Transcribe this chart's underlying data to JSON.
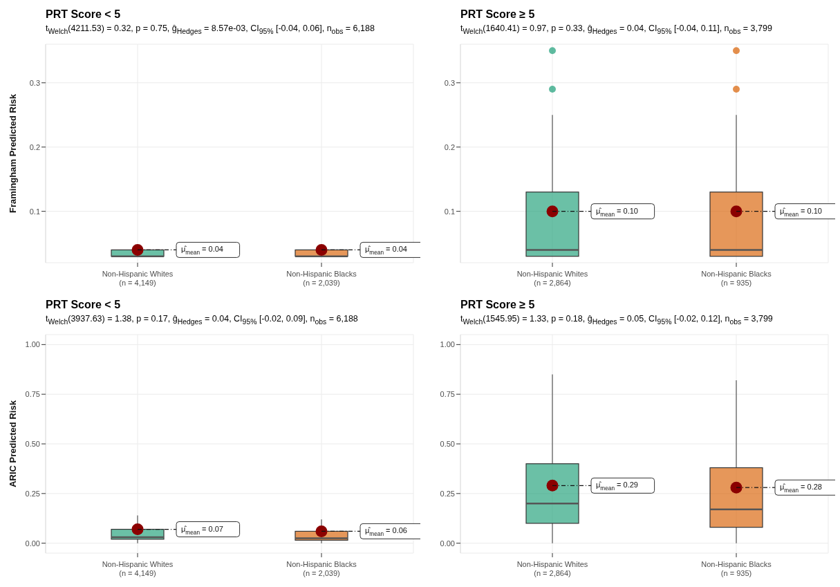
{
  "chart_data": [
    {
      "type": "box",
      "title": "PRT Score < 5",
      "subtitle": "t$_{Welch}$(4211.53) = 0.32, p = 0.75, ĝ$_{Hedges}$ = 8.57e-03, CI$_{95%}$ [-0.04, 0.06], n$_{obs}$ = 6,188",
      "ylabel": "Framingham Predicted Risk",
      "categories": [
        "Non-Hispanic Whites\n(n = 4,149)",
        "Non-Hispanic Blacks\n(n = 2,039)"
      ],
      "colors": [
        "#1b9e77",
        "#d95f02"
      ],
      "boxes": [
        {
          "low": 0.03,
          "q1": 0.03,
          "median": 0.03,
          "q3": 0.04,
          "high": 0.04,
          "mean": 0.04
        },
        {
          "low": 0.03,
          "q1": 0.03,
          "median": 0.03,
          "q3": 0.04,
          "high": 0.04,
          "mean": 0.04
        }
      ],
      "annotations": [
        {
          "text": "μ̂$_{mean}$ = 0.04",
          "x": "Non-Hispanic Whites\n(n = 4,149)",
          "y": 0.04
        },
        {
          "text": "μ̂$_{mean}$ = 0.04",
          "x": "Non-Hispanic Blacks\n(n = 2,039)",
          "y": 0.04
        }
      ],
      "ylim": [
        0.02,
        0.36
      ],
      "yticks": [
        0.1,
        0.2,
        0.3
      ],
      "grid": true
    },
    {
      "type": "box",
      "title": "PRT Score ≥  5",
      "subtitle": "t$_{Welch}$(1640.41) = 0.97, p = 0.33, ĝ$_{Hedges}$ = 0.04, CI$_{95%}$ [-0.04, 0.11], n$_{obs}$ = 3,799",
      "categories": [
        "Non-Hispanic Whites\n(n = 2,864)",
        "Non-Hispanic Blacks\n(n = 935)"
      ],
      "colors": [
        "#1b9e77",
        "#d95f02"
      ],
      "boxes": [
        {
          "low": 0.03,
          "q1": 0.03,
          "median": 0.04,
          "q3": 0.13,
          "high": 0.25,
          "mean": 0.1,
          "outliers": [
            0.29,
            0.35
          ]
        },
        {
          "low": 0.03,
          "q1": 0.03,
          "median": 0.04,
          "q3": 0.13,
          "high": 0.25,
          "mean": 0.1,
          "outliers": [
            0.29,
            0.35
          ]
        }
      ],
      "annotations": [
        "μ̂$_{mean}$ = 0.10",
        "μ̂$_{mean}$ = 0.10"
      ],
      "ylim": [
        0.02,
        0.36
      ],
      "yticks": [
        0.1,
        0.2,
        0.3
      ],
      "grid": true
    },
    {
      "type": "box",
      "title": "PRT Score < 5",
      "subtitle": "t$_{Welch}$(3937.63) = 1.38, p = 0.17, ĝ$_{Hedges}$ = 0.04, CI$_{95%}$ [-0.02, 0.09], n$_{obs}$ = 6,188",
      "ylabel": "ARIC Predicted Risk",
      "categories": [
        "Non-Hispanic Whites\n(n = 4,149)",
        "Non-Hispanic Blacks\n(n = 2,039)"
      ],
      "colors": [
        "#1b9e77",
        "#d95f02"
      ],
      "boxes": [
        {
          "low": 0.0,
          "q1": 0.02,
          "median": 0.03,
          "q3": 0.07,
          "high": 0.14,
          "mean": 0.07
        },
        {
          "low": 0.0,
          "q1": 0.015,
          "median": 0.025,
          "q3": 0.06,
          "high": 0.12,
          "mean": 0.06
        }
      ],
      "annotations": [
        {
          "text": "μ̂$_{mean}$ = 0.07",
          "x": "Non-Hispanic Whites\n(n = 4,149)",
          "y": 0.07
        },
        {
          "text": "μ̂$_{mean}$ = 0.06",
          "x": "Non-Hispanic Blacks\n(n = 2,039)",
          "y": 0.06
        }
      ],
      "ylim": [
        -0.05,
        1.05
      ],
      "yticks": [
        {
          "value": 0,
          "label": "0.00"
        },
        {
          "value": 0.25,
          "label": "0.25"
        },
        {
          "value": 0.5,
          "label": "0.50"
        },
        {
          "value": 0.75,
          "label": "0.75"
        },
        {
          "value": 1,
          "label": "1.00"
        }
      ],
      "grid": true
    },
    {
      "type": "box",
      "title": "PRT Score ≥  5",
      "subtitle": "t$_{Welch}$(1545.95) = 1.33, p = 0.18, ĝ$_{Hedges}$ = 0.05, CI$_{95%}$ [-0.02, 0.12], n$_{obs}$ = 3,799",
      "categories": [
        "Non-Hispanic Whites\n(n = 2,864)",
        "Non-Hispanic Blacks\n(n = 935)"
      ],
      "colors": [
        "#1b9e77",
        "#d95f02"
      ],
      "boxes": [
        {
          "low": 0.0,
          "q1": 0.1,
          "median": 0.2,
          "q3": 0.4,
          "high": 0.85,
          "mean": 0.29
        },
        {
          "low": 0.0,
          "q1": 0.08,
          "median": 0.17,
          "q3": 0.38,
          "high": 0.82,
          "mean": 0.28
        }
      ],
      "annotations": [
        "μ̂$_{mean}$ = 0.29",
        "μ̂$_{mean}$ = 0.28"
      ],
      "ylim": [
        -0.05,
        1.05
      ],
      "yticks": [
        {
          "value": 0,
          "label": "0.00"
        },
        {
          "value": 0.25,
          "label": "0.25"
        },
        {
          "value": 0.5,
          "label": "0.50"
        },
        {
          "value": 0.75,
          "label": "0.75"
        },
        {
          "value": 1,
          "label": "1.00"
        }
      ],
      "grid": true
    }
  ]
}
